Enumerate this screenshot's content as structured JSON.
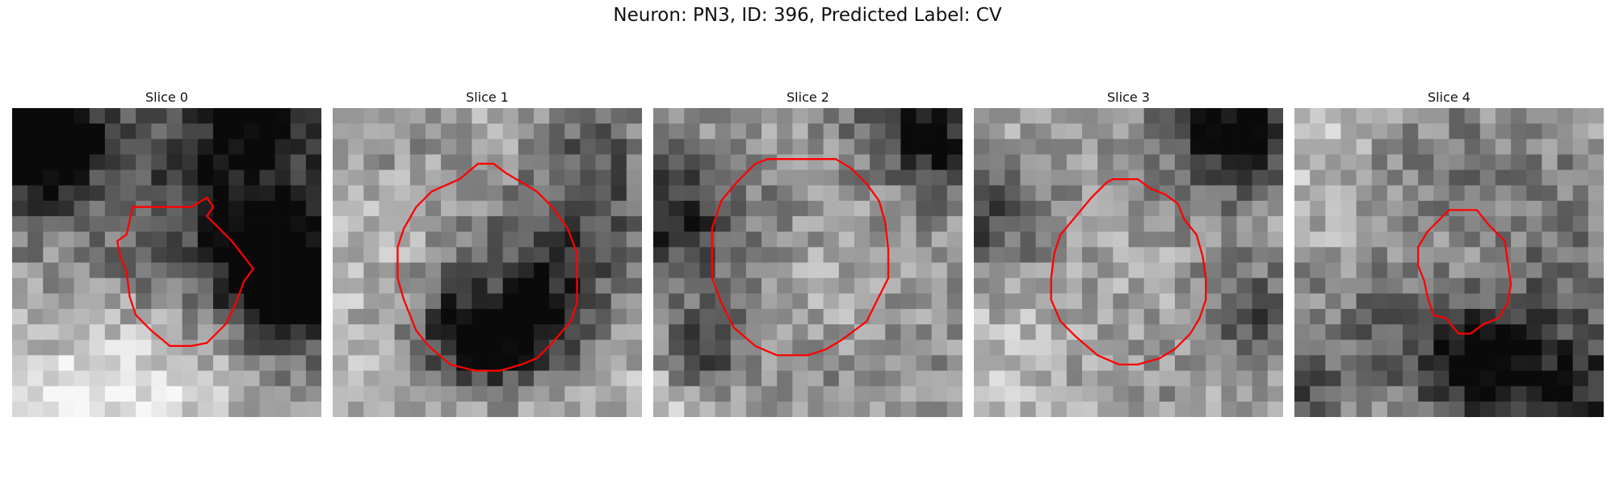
{
  "figure": {
    "title": "Neuron: PN3, ID: 396, Predicted Label: CV",
    "contour_color": "#ff0000"
  },
  "panels": [
    {
      "title": "Slice 0",
      "seed": 11,
      "base": 0.55,
      "blobs": [
        [
          2,
          3,
          2.5,
          -0.55
        ],
        [
          3,
          1,
          2,
          -0.4
        ],
        [
          16,
          0,
          3,
          -0.35
        ],
        [
          18,
          12,
          2,
          -0.6
        ],
        [
          17,
          10,
          3,
          -0.5
        ],
        [
          14,
          4,
          5,
          -0.3
        ],
        [
          5,
          18,
          5,
          0.35
        ],
        [
          10,
          19,
          4,
          0.25
        ],
        [
          8,
          14,
          6,
          -0.15
        ]
      ],
      "contour": [
        [
          7.8,
          6.4
        ],
        [
          9.6,
          6.4
        ],
        [
          11.6,
          6.4
        ],
        [
          12.6,
          5.8
        ],
        [
          13,
          6.4
        ],
        [
          12.6,
          7.0
        ],
        [
          14.2,
          8.6
        ],
        [
          15.6,
          10.4
        ],
        [
          15,
          11.2
        ],
        [
          14.4,
          12.8
        ],
        [
          13.8,
          14.0
        ],
        [
          12.6,
          15.2
        ],
        [
          11.6,
          15.4
        ],
        [
          10.2,
          15.4
        ],
        [
          9,
          14.4
        ],
        [
          8,
          13.4
        ],
        [
          7.6,
          12.2
        ],
        [
          7.4,
          10.6
        ],
        [
          7.0,
          9.6
        ],
        [
          6.8,
          8.6
        ],
        [
          7.4,
          8.2
        ]
      ]
    },
    {
      "title": "Slice 1",
      "seed": 23,
      "base": 0.72,
      "blobs": [
        [
          10.5,
          11,
          4.2,
          -0.45
        ],
        [
          9,
          15,
          2.2,
          -0.5
        ],
        [
          13,
          14,
          2.4,
          -0.45
        ],
        [
          10.5,
          11,
          1.6,
          0.25
        ],
        [
          17,
          3,
          3,
          -0.35
        ],
        [
          6,
          6,
          4,
          0.15
        ],
        [
          5,
          2,
          3,
          -0.25
        ],
        [
          17,
          9,
          3,
          -0.25
        ]
      ],
      "contour": [
        [
          8.2,
          4.6
        ],
        [
          9.4,
          3.6
        ],
        [
          10.4,
          3.6
        ],
        [
          11.2,
          4.2
        ],
        [
          12.2,
          4.8
        ],
        [
          13.2,
          5.4
        ],
        [
          14.2,
          6.4
        ],
        [
          15.2,
          7.8
        ],
        [
          15.8,
          9.4
        ],
        [
          15.8,
          11.0
        ],
        [
          15.8,
          12.6
        ],
        [
          15.4,
          13.8
        ],
        [
          14.2,
          15.2
        ],
        [
          13.2,
          16.2
        ],
        [
          12.2,
          16.6
        ],
        [
          10.8,
          17.0
        ],
        [
          9.2,
          17.0
        ],
        [
          7.6,
          16.6
        ],
        [
          6.2,
          15.4
        ],
        [
          5.4,
          14.4
        ],
        [
          4.6,
          12.4
        ],
        [
          4.2,
          11.0
        ],
        [
          4.2,
          9.0
        ],
        [
          4.6,
          7.8
        ],
        [
          5.4,
          6.4
        ],
        [
          6.4,
          5.4
        ]
      ]
    },
    {
      "title": "Slice 2",
      "seed": 37,
      "base": 0.66,
      "blobs": [
        [
          12.5,
          11,
          6.2,
          -0.5
        ],
        [
          12.5,
          11,
          4.7,
          0.5
        ],
        [
          17,
          0,
          2.5,
          -0.45
        ],
        [
          1,
          7,
          3,
          -0.45
        ],
        [
          3,
          16,
          2,
          -0.4
        ],
        [
          19,
          3,
          2,
          -0.35
        ],
        [
          1,
          19,
          3,
          0.2
        ]
      ],
      "contour": [
        [
          7.4,
          3.3
        ],
        [
          9.4,
          3.3
        ],
        [
          11.8,
          3.3
        ],
        [
          12.8,
          3.9
        ],
        [
          13.8,
          4.9
        ],
        [
          14.6,
          6.0
        ],
        [
          15.0,
          7.4
        ],
        [
          15.2,
          9.2
        ],
        [
          15.2,
          11.0
        ],
        [
          14.4,
          12.6
        ],
        [
          13.8,
          13.8
        ],
        [
          12.2,
          15.0
        ],
        [
          11.2,
          15.6
        ],
        [
          10.0,
          16.0
        ],
        [
          8.0,
          16.0
        ],
        [
          6.6,
          15.4
        ],
        [
          5.2,
          14.2
        ],
        [
          4.4,
          12.6
        ],
        [
          3.8,
          11.0
        ],
        [
          3.8,
          9.4
        ],
        [
          3.8,
          7.8
        ],
        [
          4.4,
          6.0
        ],
        [
          5.4,
          4.8
        ],
        [
          6.6,
          3.6
        ]
      ]
    },
    {
      "title": "Slice 3",
      "seed": 53,
      "base": 0.7,
      "blobs": [
        [
          10.5,
          11,
          5.7,
          -0.5
        ],
        [
          10.5,
          11,
          4.3,
          0.45
        ],
        [
          16,
          1,
          3,
          -0.45
        ],
        [
          18,
          2,
          2,
          -0.35
        ],
        [
          0,
          7,
          2.5,
          -0.4
        ],
        [
          18,
          13,
          2,
          -0.3
        ],
        [
          3,
          16,
          3,
          0.15
        ]
      ],
      "contour": [
        [
          8.6,
          4.8
        ],
        [
          9.0,
          4.6
        ],
        [
          10.6,
          4.6
        ],
        [
          11.4,
          5.2
        ],
        [
          12.4,
          5.6
        ],
        [
          13.2,
          6.2
        ],
        [
          13.6,
          7.2
        ],
        [
          14.4,
          8.2
        ],
        [
          14.8,
          9.6
        ],
        [
          15.0,
          11.0
        ],
        [
          15.0,
          12.4
        ],
        [
          14.6,
          13.6
        ],
        [
          14.0,
          14.6
        ],
        [
          13.0,
          15.6
        ],
        [
          12.0,
          16.2
        ],
        [
          10.6,
          16.6
        ],
        [
          9.4,
          16.6
        ],
        [
          8.0,
          16.0
        ],
        [
          6.6,
          14.8
        ],
        [
          5.6,
          13.8
        ],
        [
          5.0,
          12.4
        ],
        [
          5.0,
          11.0
        ],
        [
          5.2,
          9.4
        ],
        [
          5.6,
          8.2
        ],
        [
          6.6,
          7.0
        ],
        [
          7.6,
          5.8
        ]
      ]
    },
    {
      "title": "Slice 4",
      "seed": 71,
      "base": 0.63,
      "blobs": [
        [
          11,
          11,
          5.8,
          -0.55
        ],
        [
          11,
          10,
          3.6,
          0.45
        ],
        [
          12,
          16.5,
          2.2,
          -0.45
        ],
        [
          1,
          2,
          3,
          0.15
        ],
        [
          18,
          19,
          3,
          -0.45
        ],
        [
          0,
          18,
          2,
          -0.3
        ],
        [
          4,
          8,
          2.5,
          0.2
        ]
      ],
      "contour": [
        [
          9.6,
          7.0
        ],
        [
          10.0,
          6.6
        ],
        [
          11.8,
          6.6
        ],
        [
          12.6,
          7.6
        ],
        [
          13.6,
          8.6
        ],
        [
          13.8,
          10.0
        ],
        [
          14.0,
          11.4
        ],
        [
          13.8,
          12.6
        ],
        [
          13.2,
          13.6
        ],
        [
          12.2,
          14.0
        ],
        [
          11.4,
          14.6
        ],
        [
          10.6,
          14.6
        ],
        [
          9.8,
          13.6
        ],
        [
          9.0,
          13.4
        ],
        [
          8.6,
          12.2
        ],
        [
          8.4,
          11.2
        ],
        [
          8.0,
          10.2
        ],
        [
          8.0,
          9.0
        ],
        [
          8.6,
          8.0
        ]
      ]
    }
  ]
}
